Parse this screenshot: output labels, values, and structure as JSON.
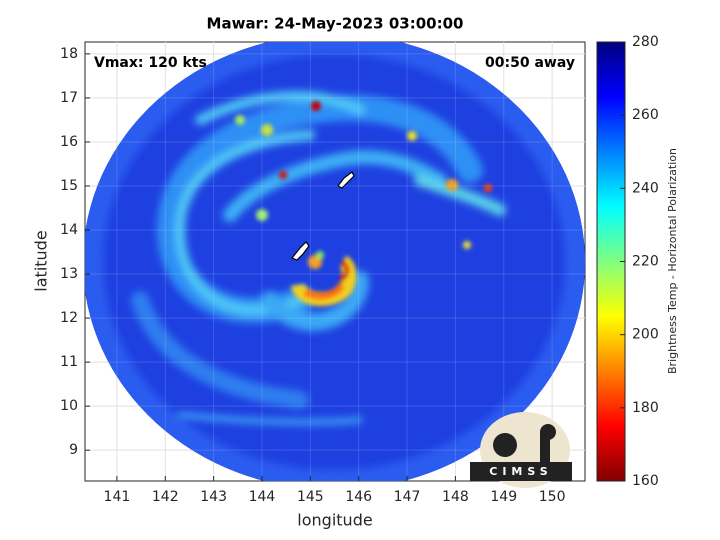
{
  "chart_data": {
    "type": "image",
    "title": "Mawar: 24-May-2023 03:00:00",
    "xlabel": "longitude",
    "ylabel": "latitude",
    "xlim": [
      140.34,
      150.68
    ],
    "ylim": [
      8.3,
      18.27
    ],
    "xticks": [
      141,
      142,
      143,
      144,
      145,
      146,
      147,
      148,
      149,
      150
    ],
    "yticks": [
      9,
      10,
      11,
      12,
      13,
      14,
      15,
      16,
      17,
      18
    ],
    "grid": true,
    "annotations": [
      "Vmax: 120 kts",
      "00:50 away"
    ],
    "colorbar": {
      "label": "Brightness Temp - Horizontal Polarization",
      "lim": [
        160,
        280
      ],
      "ticks": [
        160,
        180,
        200,
        220,
        240,
        260,
        280
      ],
      "colormap": [
        "#800000",
        "#ff0000",
        "#ff8000",
        "#ffff00",
        "#80ff80",
        "#00ffff",
        "#0080ff",
        "#0000ff",
        "#000080"
      ]
    },
    "logo_text": "CIMSS"
  }
}
